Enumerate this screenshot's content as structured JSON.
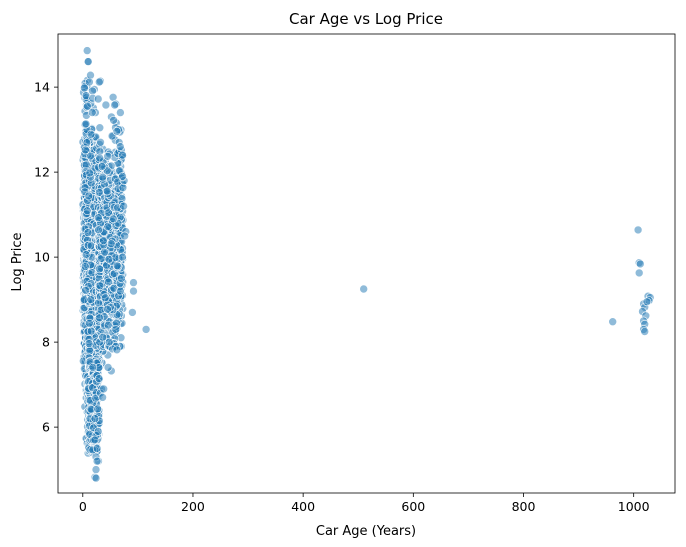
{
  "chart_data": {
    "type": "scatter",
    "title": "Car Age vs Log Price",
    "xlabel": "Car Age (Years)",
    "ylabel": "Log Price",
    "xlim": [
      -45,
      1075
    ],
    "ylim": [
      4.45,
      15.25
    ],
    "xticks": [
      0,
      200,
      400,
      600,
      800,
      1000
    ],
    "yticks": [
      6,
      8,
      10,
      12,
      14
    ],
    "grid": false,
    "point_color": "#1f77b4",
    "point_opacity": 0.5,
    "series": [
      {
        "points": [
          [
            8,
            14.86
          ],
          [
            9,
            14.6
          ],
          [
            10,
            14.6
          ],
          [
            14,
            14.28
          ],
          [
            12,
            14.12
          ],
          [
            32,
            14.14
          ],
          [
            30,
            14.12
          ],
          [
            3,
            13.98
          ],
          [
            6,
            13.8
          ],
          [
            18,
            13.74
          ],
          [
            28,
            13.72
          ],
          [
            55,
            13.76
          ],
          [
            60,
            13.6
          ],
          [
            58,
            13.58
          ],
          [
            42,
            13.58
          ],
          [
            52,
            13.3
          ],
          [
            56,
            13.22
          ],
          [
            65,
            13.0
          ],
          [
            62,
            12.96
          ],
          [
            66,
            12.7
          ],
          [
            70,
            12.52
          ],
          [
            72,
            12.4
          ],
          [
            68,
            12.6
          ],
          [
            75,
            11.8
          ],
          [
            72,
            11.9
          ],
          [
            74,
            11.2
          ],
          [
            78,
            10.6
          ],
          [
            76,
            10.5
          ],
          [
            72,
            10.0
          ],
          [
            70,
            9.5
          ],
          [
            68,
            9.2
          ],
          [
            92,
            9.4
          ],
          [
            92,
            9.2
          ],
          [
            90,
            8.7
          ],
          [
            115,
            8.3
          ],
          [
            60,
            8.3
          ],
          [
            60,
            7.9
          ],
          [
            54,
            7.84
          ],
          [
            62,
            7.82
          ],
          [
            46,
            8.4
          ],
          [
            48,
            8.0
          ],
          [
            34,
            6.9
          ],
          [
            32,
            6.8
          ],
          [
            36,
            6.7
          ],
          [
            38,
            6.9
          ],
          [
            22,
            6.2
          ],
          [
            24,
            5.8
          ],
          [
            26,
            5.5
          ],
          [
            28,
            5.9
          ],
          [
            22,
            5.7
          ],
          [
            24,
            5.3
          ],
          [
            26,
            5.2
          ],
          [
            24,
            5.0
          ],
          [
            22,
            4.82
          ],
          [
            24,
            4.8
          ],
          [
            510,
            9.25
          ],
          [
            962,
            8.48
          ],
          [
            1008,
            10.64
          ],
          [
            1010,
            9.87
          ],
          [
            1012,
            9.84
          ],
          [
            1010,
            9.63
          ],
          [
            1018,
            8.9
          ],
          [
            1020,
            8.82
          ],
          [
            1016,
            8.72
          ],
          [
            1022,
            8.62
          ],
          [
            1018,
            8.5
          ],
          [
            1020,
            8.42
          ],
          [
            1018,
            8.3
          ],
          [
            1020,
            8.25
          ],
          [
            1026,
            9.08
          ],
          [
            1030,
            9.05
          ],
          [
            1028,
            8.98
          ],
          [
            1024,
            8.95
          ]
        ]
      }
    ]
  }
}
